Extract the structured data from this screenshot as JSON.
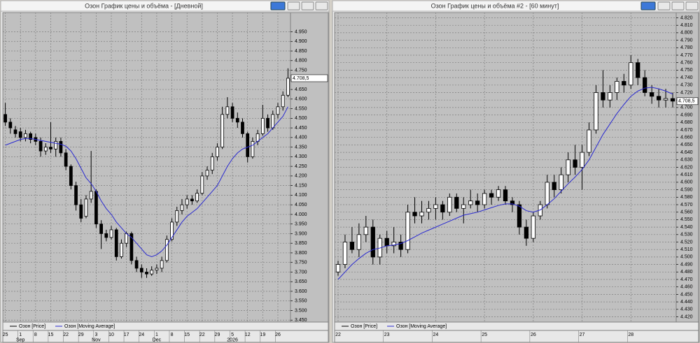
{
  "chart_data": [
    {
      "type": "candlestick",
      "title": "Озон График цены и объёма - [Дневной]",
      "categories": [
        "25",
        null,
        null,
        "1",
        null,
        null,
        "8",
        null,
        null,
        "15",
        null,
        null,
        "22",
        null,
        null,
        "29",
        null,
        null,
        "3",
        null,
        null,
        "10",
        null,
        null,
        "17",
        null,
        null,
        "24",
        null,
        null,
        "1",
        null,
        null,
        "8",
        null,
        null,
        "15",
        null,
        null,
        "22",
        null,
        null,
        "29",
        null,
        null,
        "5",
        null,
        null,
        "12",
        null,
        null,
        "19",
        null,
        null,
        "26",
        null,
        null
      ],
      "periods": [
        null,
        null,
        null,
        "Sep",
        null,
        null,
        null,
        null,
        null,
        null,
        null,
        null,
        null,
        null,
        null,
        null,
        null,
        null,
        "Nov",
        null,
        null,
        null,
        null,
        null,
        null,
        null,
        null,
        null,
        null,
        null,
        "Dec",
        null,
        null,
        null,
        null,
        null,
        null,
        null,
        null,
        null,
        null,
        null,
        null,
        null,
        null,
        "2026",
        null,
        null,
        null,
        null,
        null,
        null,
        null,
        null,
        null,
        null,
        null
      ],
      "series": [
        {
          "name": "Озон [Price]",
          "color": "#000000",
          "open": [
            4520,
            4480,
            4440,
            4430,
            4400,
            4420,
            4400,
            4380,
            4330,
            4350,
            4340,
            4380,
            4320,
            4250,
            4150,
            4050,
            3990,
            4080,
            4120,
            3950,
            3900,
            3880,
            3920,
            3780,
            3850,
            3900,
            3760,
            3720,
            3700,
            3690,
            3710,
            3720,
            3760,
            3870,
            3960,
            4020,
            4050,
            4080,
            4070,
            4110,
            4200,
            4230,
            4300,
            4350,
            4520,
            4560,
            4500,
            4480,
            4420,
            4300,
            4380,
            4420,
            4500,
            4450,
            4520,
            4560,
            4620
          ],
          "high": [
            4580,
            4500,
            4460,
            4450,
            4440,
            4430,
            4420,
            4400,
            4370,
            4480,
            4400,
            4400,
            4340,
            4260,
            4170,
            4080,
            4100,
            4330,
            4130,
            3970,
            3920,
            3940,
            3930,
            3870,
            3910,
            3910,
            3780,
            3740,
            3720,
            3730,
            3740,
            3780,
            3890,
            3980,
            4040,
            4080,
            4100,
            4100,
            4130,
            4220,
            4250,
            4320,
            4370,
            4560,
            4610,
            4580,
            4530,
            4500,
            4430,
            4400,
            4440,
            4570,
            4520,
            4540,
            4580,
            4640,
            4760
          ],
          "low": [
            4460,
            4420,
            4400,
            4380,
            4380,
            4370,
            4360,
            4300,
            4310,
            4320,
            4300,
            4300,
            4230,
            4130,
            4020,
            3960,
            3980,
            4060,
            3930,
            3820,
            3860,
            3870,
            3760,
            3770,
            3830,
            3740,
            3700,
            3670,
            3670,
            3680,
            3690,
            3700,
            3750,
            3860,
            3940,
            4000,
            4030,
            4050,
            4060,
            4100,
            4180,
            4210,
            4280,
            4340,
            4500,
            4480,
            4450,
            4400,
            4270,
            4290,
            4360,
            4410,
            4430,
            4440,
            4500,
            4540,
            4610
          ],
          "close": [
            4480,
            4450,
            4420,
            4400,
            4420,
            4390,
            4380,
            4330,
            4350,
            4340,
            4380,
            4320,
            4250,
            4150,
            4050,
            3980,
            4080,
            4120,
            3950,
            3900,
            3880,
            3920,
            3780,
            3850,
            3900,
            3760,
            3720,
            3700,
            3690,
            3710,
            3720,
            3760,
            3870,
            3960,
            4020,
            4050,
            4080,
            4070,
            4110,
            4200,
            4230,
            4300,
            4350,
            4520,
            4560,
            4500,
            4480,
            4420,
            4300,
            4380,
            4420,
            4500,
            4450,
            4520,
            4560,
            4620,
            4708.5
          ]
        },
        {
          "name": "Озон [Moving Average]",
          "color": "#2a2ad0",
          "values": [
            4360,
            4370,
            4380,
            4390,
            4395,
            4395,
            4390,
            4385,
            4380,
            4375,
            4370,
            4365,
            4355,
            4330,
            4290,
            4240,
            4190,
            4160,
            4120,
            4070,
            4030,
            4000,
            3960,
            3930,
            3900,
            3880,
            3850,
            3820,
            3790,
            3780,
            3790,
            3810,
            3840,
            3880,
            3920,
            3960,
            3990,
            4010,
            4030,
            4060,
            4090,
            4120,
            4150,
            4200,
            4250,
            4290,
            4320,
            4340,
            4350,
            4360,
            4380,
            4400,
            4420,
            4450,
            4480,
            4510,
            4560
          ]
        }
      ],
      "last_price": {
        "value": 4708.5,
        "label": "4.708,5"
      },
      "ylim": [
        3440,
        5050
      ],
      "yticks": [
        {
          "value": 3450,
          "label": "3.450"
        },
        {
          "value": 3500,
          "label": "3.500"
        },
        {
          "value": 3550,
          "label": "3.550"
        },
        {
          "value": 3600,
          "label": "3.600"
        },
        {
          "value": 3650,
          "label": "3.650"
        },
        {
          "value": 3700,
          "label": "3.700"
        },
        {
          "value": 3750,
          "label": "3.750"
        },
        {
          "value": 3800,
          "label": "3.800"
        },
        {
          "value": 3850,
          "label": "3.850"
        },
        {
          "value": 3900,
          "label": "3.900"
        },
        {
          "value": 3950,
          "label": "3.950"
        },
        {
          "value": 4000,
          "label": "4.000"
        },
        {
          "value": 4050,
          "label": "4.050"
        },
        {
          "value": 4100,
          "label": "4.100"
        },
        {
          "value": 4150,
          "label": "4.150"
        },
        {
          "value": 4200,
          "label": "4.200"
        },
        {
          "value": 4250,
          "label": "4.250"
        },
        {
          "value": 4300,
          "label": "4.300"
        },
        {
          "value": 4350,
          "label": "4.350"
        },
        {
          "value": 4400,
          "label": "4.400"
        },
        {
          "value": 4450,
          "label": "4.450"
        },
        {
          "value": 4500,
          "label": "4.500"
        },
        {
          "value": 4550,
          "label": "4.550"
        },
        {
          "value": 4600,
          "label": "4.600"
        },
        {
          "value": 4650,
          "label": "4.650"
        },
        {
          "value": 4700,
          "label": "4.700"
        },
        {
          "value": 4750,
          "label": "4.750"
        },
        {
          "value": 4800,
          "label": "4.800"
        },
        {
          "value": 4850,
          "label": "4.850"
        },
        {
          "value": 4900,
          "label": "4.900"
        },
        {
          "value": 4950,
          "label": "4.950"
        }
      ],
      "grid": true
    },
    {
      "type": "candlestick",
      "title": "Озон График цены и объёма #2 - [60 минут]",
      "categories": [
        "22",
        null,
        null,
        null,
        null,
        null,
        null,
        "23",
        null,
        null,
        null,
        null,
        null,
        null,
        "24",
        null,
        null,
        null,
        null,
        null,
        null,
        "25",
        null,
        null,
        null,
        null,
        null,
        null,
        "26",
        null,
        null,
        null,
        null,
        null,
        null,
        "27",
        null,
        null,
        null,
        null,
        null,
        null,
        "28",
        null,
        null,
        null,
        null,
        null,
        null
      ],
      "series": [
        {
          "name": "Озон [Price]",
          "color": "#000000",
          "open": [
            4480,
            4490,
            4520,
            4510,
            4530,
            4540,
            4500,
            4525,
            4515,
            4520,
            4510,
            4560,
            4555,
            4560,
            4565,
            4570,
            4560,
            4580,
            4565,
            4570,
            4575,
            4570,
            4585,
            4580,
            4590,
            4575,
            4570,
            4540,
            4525,
            4555,
            4570,
            4600,
            4590,
            4610,
            4630,
            4620,
            4640,
            4670,
            4720,
            4710,
            4720,
            4735,
            4730,
            4760,
            4740,
            4720,
            4715,
            4710,
            4712
          ],
          "high": [
            4495,
            4530,
            4540,
            4545,
            4555,
            4550,
            4530,
            4535,
            4540,
            4530,
            4570,
            4580,
            4575,
            4575,
            4580,
            4575,
            4585,
            4585,
            4580,
            4590,
            4585,
            4590,
            4590,
            4595,
            4595,
            4580,
            4575,
            4550,
            4560,
            4575,
            4610,
            4610,
            4620,
            4640,
            4650,
            4650,
            4680,
            4730,
            4750,
            4730,
            4740,
            4745,
            4770,
            4765,
            4750,
            4730,
            4725,
            4725,
            4720
          ],
          "low": [
            4475,
            4485,
            4505,
            4500,
            4520,
            4490,
            4490,
            4505,
            4505,
            4500,
            4505,
            4545,
            4545,
            4550,
            4550,
            4550,
            4555,
            4560,
            4545,
            4565,
            4560,
            4565,
            4570,
            4575,
            4570,
            4560,
            4530,
            4515,
            4520,
            4550,
            4565,
            4580,
            4585,
            4600,
            4610,
            4590,
            4635,
            4665,
            4700,
            4700,
            4710,
            4720,
            4725,
            4730,
            4715,
            4705,
            4700,
            4700,
            4700
          ],
          "close": [
            4490,
            4520,
            4510,
            4530,
            4540,
            4500,
            4525,
            4515,
            4520,
            4510,
            4560,
            4555,
            4560,
            4565,
            4570,
            4560,
            4580,
            4565,
            4570,
            4575,
            4570,
            4585,
            4580,
            4590,
            4575,
            4570,
            4540,
            4525,
            4555,
            4570,
            4600,
            4590,
            4610,
            4630,
            4620,
            4640,
            4670,
            4720,
            4710,
            4720,
            4735,
            4730,
            4760,
            4740,
            4720,
            4715,
            4710,
            4712,
            4708.5
          ]
        },
        {
          "name": "Озон [Moving Average]",
          "color": "#2a2ad0",
          "values": [
            4470,
            4480,
            4490,
            4498,
            4505,
            4510,
            4512,
            4515,
            4516,
            4518,
            4522,
            4527,
            4532,
            4536,
            4540,
            4544,
            4548,
            4552,
            4556,
            4558,
            4560,
            4563,
            4566,
            4569,
            4571,
            4571,
            4568,
            4562,
            4560,
            4563,
            4570,
            4578,
            4588,
            4598,
            4607,
            4617,
            4630,
            4647,
            4664,
            4678,
            4692,
            4704,
            4715,
            4722,
            4726,
            4727,
            4725,
            4722,
            4718
          ]
        }
      ],
      "last_price": {
        "value": 4708.5,
        "label": "4.708,5"
      },
      "ylim": [
        4413,
        4827
      ],
      "yticks": [
        {
          "value": 4420,
          "label": "4.420"
        },
        {
          "value": 4430,
          "label": "4.430"
        },
        {
          "value": 4440,
          "label": "4.440"
        },
        {
          "value": 4450,
          "label": "4.450"
        },
        {
          "value": 4460,
          "label": "4.460"
        },
        {
          "value": 4470,
          "label": "4.470"
        },
        {
          "value": 4480,
          "label": "4.480"
        },
        {
          "value": 4490,
          "label": "4.490"
        },
        {
          "value": 4500,
          "label": "4.500"
        },
        {
          "value": 4510,
          "label": "4.510"
        },
        {
          "value": 4520,
          "label": "4.520"
        },
        {
          "value": 4530,
          "label": "4.530"
        },
        {
          "value": 4540,
          "label": "4.540"
        },
        {
          "value": 4550,
          "label": "4.550"
        },
        {
          "value": 4560,
          "label": "4.560"
        },
        {
          "value": 4570,
          "label": "4.570"
        },
        {
          "value": 4580,
          "label": "4.580"
        },
        {
          "value": 4590,
          "label": "4.590"
        },
        {
          "value": 4600,
          "label": "4.600"
        },
        {
          "value": 4610,
          "label": "4.610"
        },
        {
          "value": 4620,
          "label": "4.620"
        },
        {
          "value": 4630,
          "label": "4.630"
        },
        {
          "value": 4640,
          "label": "4.640"
        },
        {
          "value": 4650,
          "label": "4.650"
        },
        {
          "value": 4660,
          "label": "4.660"
        },
        {
          "value": 4670,
          "label": "4.670"
        },
        {
          "value": 4680,
          "label": "4.680"
        },
        {
          "value": 4690,
          "label": "4.690"
        },
        {
          "value": 4700,
          "label": "4.700"
        },
        {
          "value": 4710,
          "label": "4.710"
        },
        {
          "value": 4720,
          "label": "4.720"
        },
        {
          "value": 4730,
          "label": "4.730"
        },
        {
          "value": 4740,
          "label": "4.740"
        },
        {
          "value": 4750,
          "label": "4.750"
        },
        {
          "value": 4760,
          "label": "4.760"
        },
        {
          "value": 4770,
          "label": "4.770"
        },
        {
          "value": 4780,
          "label": "4.780"
        },
        {
          "value": 4790,
          "label": "4.790"
        },
        {
          "value": 4800,
          "label": "4.800"
        },
        {
          "value": 4810,
          "label": "4.810"
        },
        {
          "value": 4820,
          "label": "4.820"
        }
      ],
      "grid": true
    }
  ]
}
